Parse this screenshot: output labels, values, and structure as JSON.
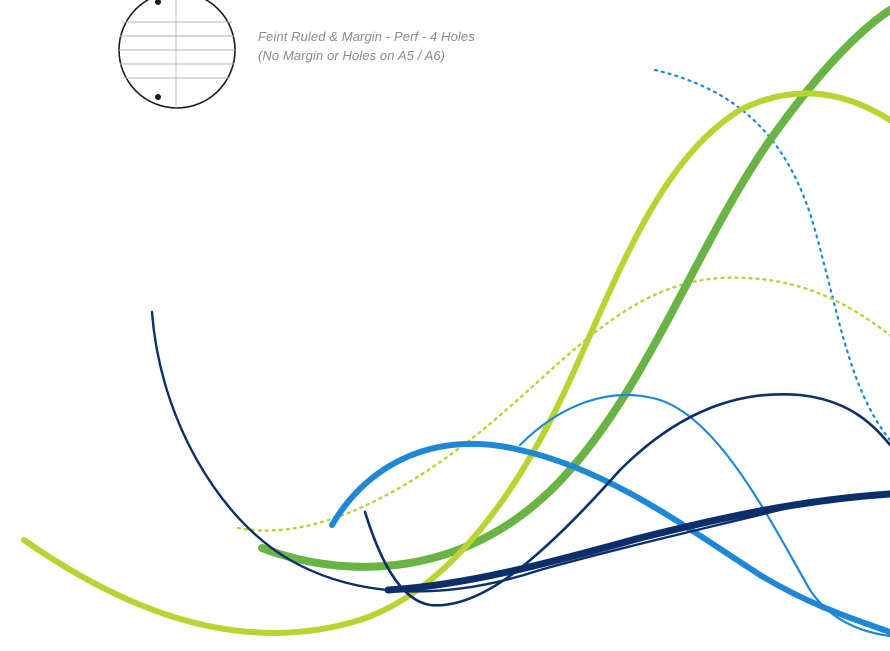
{
  "spec": {
    "line1": "Feint Ruled & Margin - Perf - 4 Holes",
    "line2": "(No Margin or Holes on A5 / A6)"
  },
  "icon": {
    "name": "feint-ruled-page-icon"
  },
  "colors": {
    "lime": "#b8d433",
    "green": "#6ab445",
    "light_blue": "#1e88d6",
    "dark_blue": "#0c2f6b",
    "caption_gray": "#8a8a8a"
  }
}
